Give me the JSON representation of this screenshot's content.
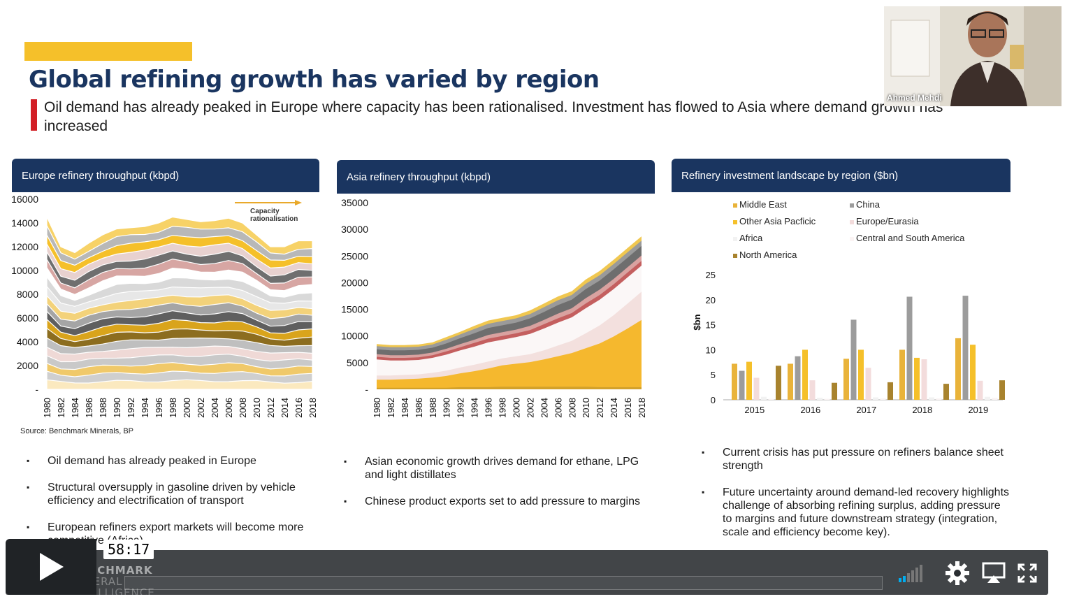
{
  "slide": {
    "title": "Global refining growth has varied by region",
    "subtitle": "Oil demand has already peaked in Europe where capacity has been rationalised. Investment has flowed to Asia where demand growth has increased",
    "source": "Source: Benchmark Minerals, BP",
    "accent_color": "#f5c02a",
    "header_color": "#1a3560"
  },
  "panels": [
    {
      "heading": "Europe refinery throughput (kbpd)"
    },
    {
      "heading": "Asia refinery throughput (kbpd)"
    },
    {
      "heading": "Refinery investment landscape by region ($bn)"
    }
  ],
  "annotation": {
    "line1": "Capacity",
    "line2": "rationalisation"
  },
  "bullets_europe": [
    "Oil demand has already peaked in Europe",
    " Structural oversupply in gasoline driven by vehicle efficiency and electrification of transport",
    "European refiners export markets will become more competitive (Africa)"
  ],
  "bullets_asia": [
    "Asian economic growth drives demand for ethane, LPG and light distillates",
    "Chinese product exports set to add pressure to margins"
  ],
  "bullets_investment": [
    "Current crisis has put pressure on refiners balance sheet strength",
    "Future uncertainty around demand-led recovery highlights challenge of absorbing refining surplus, adding pressure to margins and future downstream strategy (integration, scale and efficiency become key)."
  ],
  "chart_data": [
    {
      "type": "area",
      "title": "Europe refinery throughput (kbpd)",
      "x": [
        1980,
        1982,
        1984,
        1986,
        1988,
        1990,
        1992,
        1994,
        1996,
        1998,
        2000,
        2002,
        2004,
        2006,
        2008,
        2010,
        2012,
        2014,
        2016,
        2018
      ],
      "x_tick_labels": [
        "1980",
        "1982",
        "1984",
        "1986",
        "1988",
        "1990",
        "1992",
        "1994",
        "1996",
        "1998",
        "2000",
        "2002",
        "2004",
        "2006",
        "2008",
        "2010",
        "2012",
        "2014",
        "2016",
        "2018"
      ],
      "y_tick_labels": [
        "-",
        "2000",
        "4000",
        "6000",
        "8000",
        "10000",
        "12000",
        "14000",
        "16000"
      ],
      "ylim": [
        0,
        16000
      ],
      "total": [
        14500,
        12000,
        11500,
        12300,
        13000,
        13500,
        13600,
        13700,
        14000,
        14500,
        14300,
        14100,
        14200,
        14400,
        14000,
        13000,
        12000,
        12000,
        12500,
        12500
      ],
      "colors": [
        "#fbe9bf",
        "#cfcfcf",
        "#f0c96a",
        "#c9c9c9",
        "#efd9d6",
        "#bfbfbf",
        "#8c6d1f",
        "#d9a41c",
        "#5f5f5f",
        "#a5a5a5",
        "#f3d27a",
        "#e7e7e7",
        "#d9d9d9",
        "#ffffff",
        "#d7a6a3",
        "#6f6f6f",
        "#e8d1cf",
        "#f5c02a",
        "#b8b8b8",
        "#f7d267"
      ]
    },
    {
      "type": "area",
      "title": "Asia refinery throughput (kbpd)",
      "x": [
        1980,
        1982,
        1984,
        1986,
        1988,
        1990,
        1992,
        1994,
        1996,
        1998,
        2000,
        2002,
        2004,
        2006,
        2008,
        2010,
        2012,
        2014,
        2016,
        2018
      ],
      "x_tick_labels": [
        "1980",
        "1982",
        "1984",
        "1986",
        "1988",
        "1990",
        "1992",
        "1994",
        "1996",
        "1998",
        "2000",
        "2002",
        "2004",
        "2006",
        "2008",
        "2010",
        "2012",
        "2014",
        "2016",
        "2018"
      ],
      "y_tick_labels": [
        "-",
        "5000",
        "10000",
        "15000",
        "20000",
        "25000",
        "30000",
        "35000"
      ],
      "ylim": [
        0,
        35000
      ],
      "series_layers": [
        {
          "color": "#d3a12a",
          "values": [
            300,
            300,
            300,
            300,
            300,
            300,
            400,
            400,
            400,
            500,
            500,
            500,
            500,
            500,
            500,
            500,
            400,
            400,
            400,
            400
          ]
        },
        {
          "color": "#f5b82e",
          "values": [
            1500,
            1500,
            1600,
            1700,
            1900,
            2200,
            2600,
            3000,
            3500,
            4000,
            4300,
            4600,
            5100,
            5700,
            6300,
            7200,
            8200,
            9500,
            11000,
            12600
          ]
        },
        {
          "color": "#f3e0de",
          "values": [
            800,
            800,
            800,
            800,
            900,
            1000,
            1100,
            1200,
            1300,
            1300,
            1400,
            1500,
            1700,
            2000,
            2300,
            2800,
            3400,
            4000,
            4700,
            5300
          ]
        },
        {
          "color": "#fbf7f7",
          "values": [
            3000,
            2800,
            2700,
            2700,
            2800,
            3000,
            3200,
            3400,
            3600,
            3500,
            3600,
            3800,
            4100,
            4300,
            4400,
            4700,
            4800,
            4900,
            4900,
            4900
          ]
        },
        {
          "color": "#c45f5f",
          "values": [
            500,
            500,
            500,
            500,
            500,
            600,
            600,
            700,
            700,
            700,
            700,
            700,
            800,
            800,
            800,
            900,
            900,
            900,
            900,
            900
          ]
        },
        {
          "color": "#d9a2a0",
          "values": [
            500,
            500,
            500,
            500,
            500,
            500,
            600,
            600,
            700,
            700,
            700,
            800,
            800,
            900,
            900,
            1000,
            1000,
            1000,
            1000,
            1000
          ]
        },
        {
          "color": "#6e6e6e",
          "values": [
            900,
            900,
            900,
            900,
            900,
            1000,
            1100,
            1200,
            1300,
            1300,
            1300,
            1400,
            1500,
            1600,
            1600,
            1700,
            1700,
            1800,
            1800,
            1800
          ]
        },
        {
          "color": "#9a9a9a",
          "values": [
            600,
            600,
            600,
            600,
            600,
            700,
            700,
            800,
            800,
            800,
            800,
            800,
            900,
            900,
            900,
            1000,
            1000,
            1000,
            1000,
            1000
          ]
        },
        {
          "color": "#f0c750",
          "values": [
            400,
            400,
            400,
            400,
            400,
            500,
            500,
            600,
            600,
            600,
            600,
            700,
            700,
            700,
            700,
            800,
            800,
            800,
            800,
            800
          ]
        }
      ]
    },
    {
      "type": "bar",
      "title": "Refinery investment landscape by region ($bn)",
      "ylabel": "$bn",
      "y_tick_labels": [
        "0",
        "5",
        "10",
        "15",
        "20",
        "25"
      ],
      "ylim": [
        0,
        25
      ],
      "categories": [
        "2015",
        "2016",
        "2017",
        "2018",
        "2019"
      ],
      "series": [
        {
          "name": "Middle East",
          "color": "#e9b33a",
          "values": [
            7.2,
            7.2,
            8.2,
            10.0,
            12.3
          ]
        },
        {
          "name": "China",
          "color": "#9c9c9c",
          "values": [
            5.8,
            8.7,
            16.0,
            20.6,
            20.8
          ]
        },
        {
          "name": "Other Asia Pacficic",
          "color": "#f5c02a",
          "values": [
            7.6,
            10.0,
            10.0,
            8.4,
            11.0
          ]
        },
        {
          "name": "Europe/Eurasia",
          "color": "#f3dcdc",
          "values": [
            4.4,
            3.9,
            6.4,
            8.1,
            3.8
          ]
        },
        {
          "name": "Africa",
          "color": "#f2f2f2",
          "values": [
            0.6,
            0.4,
            0.5,
            0.5,
            0.6
          ]
        },
        {
          "name": "Central and South America",
          "color": "#fbf4f4",
          "values": [
            0.2,
            0.2,
            0.3,
            0.3,
            0.4
          ]
        },
        {
          "name": "North America",
          "color": "#a8832e",
          "values": [
            6.8,
            3.4,
            3.5,
            3.2,
            3.9
          ]
        }
      ]
    }
  ],
  "webcam": {
    "name": "Ahmed Mehdi"
  },
  "player": {
    "time": "58:17",
    "progress": 0.0,
    "logo_line1": "BENCHMARK",
    "logo_line2": "MINERAL",
    "logo_line3": "INTELLIGENCE",
    "icons": [
      "play-icon",
      "volume-icon",
      "gear-icon",
      "airplay-icon",
      "fullscreen-icon"
    ]
  }
}
